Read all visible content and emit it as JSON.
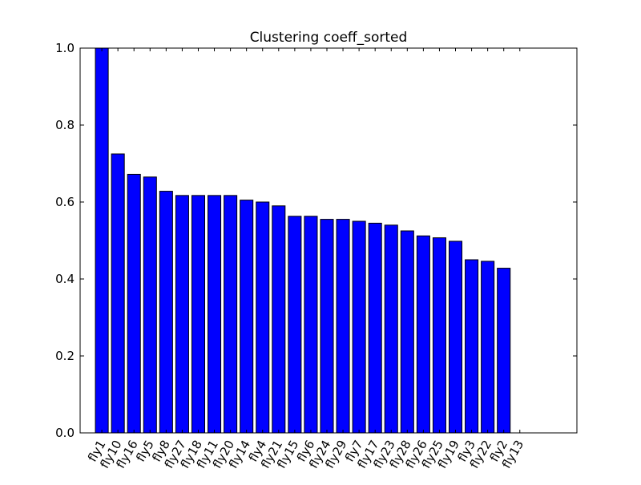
{
  "chart_data": {
    "type": "bar",
    "title": "Clustering coeff_sorted",
    "xlabel": "",
    "ylabel": "",
    "categories": [
      "fly1",
      "fly10",
      "fly16",
      "fly5",
      "fly8",
      "fly27",
      "fly18",
      "fly11",
      "fly20",
      "fly14",
      "fly4",
      "fly21",
      "fly15",
      "fly6",
      "fly24",
      "fly29",
      "fly7",
      "fly17",
      "fly23",
      "fly28",
      "fly26",
      "fly25",
      "fly19",
      "fly3",
      "fly22",
      "fly2",
      "fly13"
    ],
    "values": [
      1.0,
      0.725,
      0.672,
      0.665,
      0.628,
      0.617,
      0.617,
      0.617,
      0.617,
      0.605,
      0.6,
      0.59,
      0.563,
      0.563,
      0.555,
      0.555,
      0.55,
      0.545,
      0.54,
      0.525,
      0.512,
      0.507,
      0.498,
      0.45,
      0.446,
      0.428,
      0.0
    ],
    "ylim": [
      0,
      1.0
    ],
    "yticks": [
      "0.0",
      "0.2",
      "0.4",
      "0.6",
      "0.8",
      "1.0"
    ],
    "xlim": [
      -0.95,
      29.95
    ],
    "grid": false,
    "bar_color": "#0000ff",
    "edge_color": "#000000"
  }
}
